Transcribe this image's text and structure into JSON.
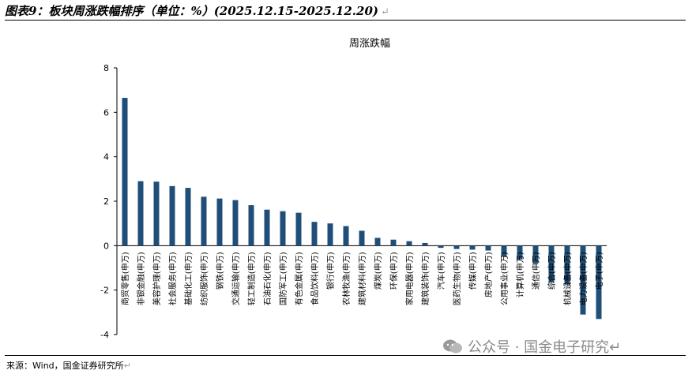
{
  "figure": {
    "title": "图表9：板块周涨跌幅排序（单位：%）(2025.12.15-2025.12.20)",
    "title_mark": "↵",
    "source": "来源：Wind，国金证券研究所",
    "source_mark": "↵",
    "watermark": "公众号 · 国金电子研究",
    "watermark_mark": "↵"
  },
  "colors": {
    "bar": "#1f4e79",
    "axis": "#000000",
    "text": "#000000"
  },
  "chart_data": {
    "type": "bar",
    "title": "周涨跌幅",
    "xlabel": "",
    "ylabel": "",
    "ylim": [
      -4,
      8
    ],
    "yticks": [
      -4,
      -2,
      0,
      2,
      4,
      6,
      8
    ],
    "grid": false,
    "legend": "none",
    "categories": [
      "商贸零售(申万)",
      "非银金融(申万)",
      "美容护理(申万)",
      "社会服务(申万)",
      "基础化工(申万)",
      "纺织服饰(申万)",
      "钢铁(申万)",
      "交通运输(申万)",
      "轻工制造(申万)",
      "石油石化(申万)",
      "国防军工(申万)",
      "有色金属(申万)",
      "食品饮料(申万)",
      "银行(申万)",
      "农林牧渔(申万)",
      "建筑材料(申万)",
      "煤炭(申万)",
      "环保(申万)",
      "家用电器(申万)",
      "建筑装饰(申万)",
      "汽车(申万)",
      "医药生物(申万)",
      "传媒(申万)",
      "房地产(申万)",
      "公用事业(申万)",
      "计算机(申万)",
      "通信(申万)",
      "综合(申万)",
      "机械设备(申万)",
      "电力设备(申万)",
      "电子(申万)"
    ],
    "values": [
      6.65,
      2.9,
      2.88,
      2.68,
      2.6,
      2.2,
      2.12,
      2.05,
      1.82,
      1.62,
      1.55,
      1.48,
      1.07,
      1.0,
      0.88,
      0.67,
      0.35,
      0.27,
      0.2,
      0.12,
      -0.1,
      -0.15,
      -0.18,
      -0.22,
      -0.5,
      -0.62,
      -0.8,
      -1.65,
      -1.75,
      -3.1,
      -3.3
    ]
  }
}
